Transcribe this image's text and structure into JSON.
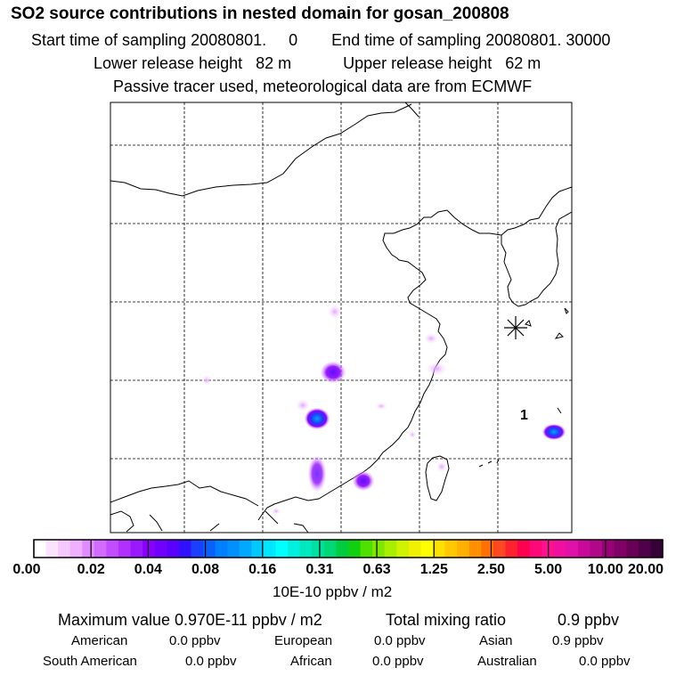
{
  "header": {
    "title": "SO2 source contributions in nested domain for gosan_200808",
    "start_label": "Start time of sampling 20080801.     0",
    "end_label": "End time of sampling 20080801. 30000",
    "lower_label": "Lower release height   82 m",
    "upper_label": "Upper release height   62 m",
    "tracer_note": "Passive tracer used, meteorological data are from ECMWF"
  },
  "map": {
    "receptor_label": "1",
    "receptor_marker": "star-cross-marker"
  },
  "colorbar": {
    "ticks": [
      "0.00",
      "0.02",
      "0.04",
      "0.08",
      "0.16",
      "0.31",
      "0.63",
      "1.25",
      "2.50",
      "5.00",
      "10.00",
      "20.00"
    ],
    "colors": [
      "#ffffff",
      "#fbe3ff",
      "#f5c8ff",
      "#eeb0ff",
      "#e08cff",
      "#d36bff",
      "#c24cff",
      "#b030ff",
      "#9a1aff",
      "#8a00ff",
      "#7000ff",
      "#5a00ff",
      "#3010ff",
      "#1a40ff",
      "#0a60ff",
      "#0080ff",
      "#0090ff",
      "#00a8ff",
      "#00c8ff",
      "#00e6ff",
      "#00ffff",
      "#00f0e0",
      "#00e8c0",
      "#00e0a0",
      "#00d878",
      "#00cc40",
      "#10d010",
      "#50e000",
      "#80e800",
      "#a8ee00",
      "#d0f200",
      "#f0f000",
      "#ffff00",
      "#ffe000",
      "#ffc800",
      "#ffb000",
      "#ff9000",
      "#ff7000",
      "#ff4820",
      "#ff2030",
      "#ff0050",
      "#ff0878",
      "#ff1090",
      "#f010a0",
      "#e010a8",
      "#c80a98",
      "#b00888",
      "#980078",
      "#800068",
      "#680058",
      "#500048",
      "#380038"
    ],
    "units": "10E-10 ppbv / m2"
  },
  "stats": {
    "max_label": "Maximum value  0.970E-11 ppbv / m2",
    "total_label": "Total mixing ratio",
    "total_value": "0.9 ppbv",
    "regions": [
      {
        "name": "American",
        "value": "0.0 ppbv"
      },
      {
        "name": "European",
        "value": "0.0 ppbv"
      },
      {
        "name": "Asian",
        "value": "0.9 ppbv"
      },
      {
        "name": "South American",
        "value": "0.0 ppbv"
      },
      {
        "name": "African",
        "value": "0.0 ppbv"
      },
      {
        "name": "Australian",
        "value": "0.0 ppbv"
      }
    ]
  }
}
